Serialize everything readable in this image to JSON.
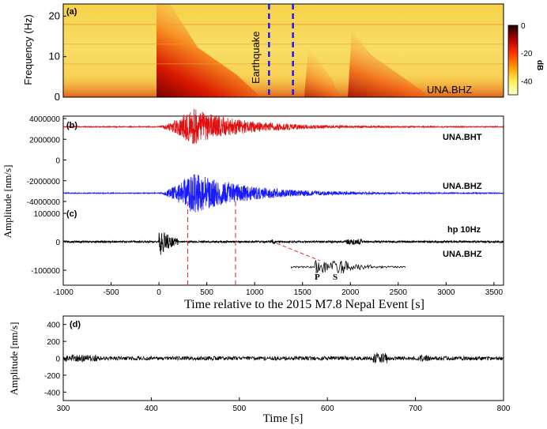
{
  "chart_data": [
    {
      "type": "heatmap",
      "panel_label": "(a)",
      "ylabel": "Frequency (Hz)",
      "yticks": [
        "0",
        "10",
        "20"
      ],
      "ylim": [
        0,
        23
      ],
      "xlim": [
        -1000,
        3600
      ],
      "station": "UNA.BHZ",
      "annotation": "Earthquake",
      "dashed_lines_x": [
        1150,
        1400
      ],
      "colorbar": {
        "label": "dB",
        "ticks": [
          "0",
          "-20",
          "-40"
        ],
        "colors": [
          "#1a0000",
          "#b00000",
          "#ff3300",
          "#ff9900",
          "#ffee55",
          "#ffffcc"
        ]
      }
    },
    {
      "type": "line",
      "panel_label": "(b)",
      "shared_ylabel": "Amplitude [nm/s]",
      "xlim": [
        -1000,
        3600
      ],
      "yticks": [
        "4000000",
        "2000000",
        "0",
        "-2000000",
        "-4000000"
      ],
      "series": [
        {
          "name": "UNA.BHT",
          "color": "#e01010",
          "baseline": 3200000,
          "onset": 0,
          "peak_time": 350,
          "peak_amp": 1800000
        },
        {
          "name": "UNA.BHZ",
          "color": "#1a1aff",
          "baseline": -3200000,
          "onset": 0,
          "peak_time": 350,
          "peak_amp": 2000000
        }
      ]
    },
    {
      "type": "line",
      "panel_label": "(c)",
      "filter_label": "hp 10Hz",
      "station": "UNA.BHZ",
      "xlim": [
        -1000,
        3600
      ],
      "yticks": [
        "100000",
        "0",
        "-100000"
      ],
      "xticks": [
        "-1000",
        "-500",
        "0",
        "500",
        "1000",
        "1500",
        "2000",
        "2500",
        "3000",
        "3500"
      ],
      "xlabel": "Time relative to the 2015 M7.8 Nepal Event [s]",
      "inset_phase_labels": [
        "P",
        "S"
      ],
      "red_dashed_x": [
        300,
        800
      ]
    },
    {
      "type": "line",
      "panel_label": "(d)",
      "ylabel": "Amplitude [nm/s]",
      "xlabel": "Time [s]",
      "xlim": [
        300,
        800
      ],
      "ylim": [
        -500,
        500
      ],
      "xticks": [
        "300",
        "400",
        "500",
        "600",
        "700",
        "800"
      ],
      "yticks": [
        "400",
        "200",
        "0",
        "-200",
        "-400"
      ]
    }
  ]
}
